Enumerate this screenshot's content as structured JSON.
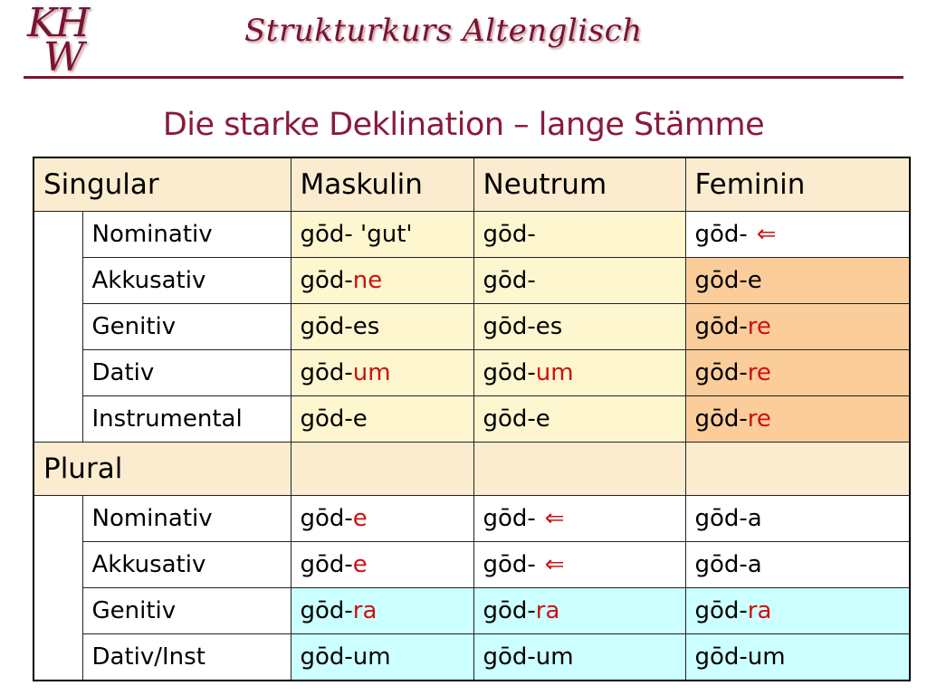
{
  "logo": {
    "line1": "KH",
    "line2": "W"
  },
  "header": {
    "title": "Strukturkurs Altenglisch"
  },
  "page_title": "Die starke Deklination – lange Stämme",
  "colors": {
    "accent": "#7a1430",
    "suffix": "#d01010",
    "header_bg": "#fbeccf",
    "cream": "#fdf6cf",
    "peach": "#fbcd9a",
    "cyan": "#ccffff"
  },
  "table": {
    "sections": [
      {
        "label": "Singular",
        "headers": [
          "Maskulin",
          "Neutrum",
          "Feminin"
        ],
        "rows": [
          {
            "case": "Nominativ",
            "cells": [
              {
                "stem": "gōd-",
                "suffix": "",
                "gloss": " 'gut'",
                "arrow": false,
                "bg": "cream"
              },
              {
                "stem": "gōd-",
                "suffix": "",
                "gloss": "",
                "arrow": false,
                "bg": "cream"
              },
              {
                "stem": "gōd-",
                "suffix": "",
                "gloss": "",
                "arrow": true,
                "bg": "white"
              }
            ]
          },
          {
            "case": "Akkusativ",
            "cells": [
              {
                "stem": "gōd-",
                "suffix": "ne",
                "gloss": "",
                "arrow": false,
                "bg": "cream"
              },
              {
                "stem": "gōd-",
                "suffix": "",
                "gloss": "",
                "arrow": false,
                "bg": "cream"
              },
              {
                "stem": "gōd-e",
                "suffix": "",
                "gloss": "",
                "arrow": false,
                "bg": "peach"
              }
            ]
          },
          {
            "case": "Genitiv",
            "cells": [
              {
                "stem": "gōd-es",
                "suffix": "",
                "gloss": "",
                "arrow": false,
                "bg": "cream"
              },
              {
                "stem": "gōd-es",
                "suffix": "",
                "gloss": "",
                "arrow": false,
                "bg": "cream"
              },
              {
                "stem": "gōd-",
                "suffix": "re",
                "gloss": "",
                "arrow": false,
                "bg": "peach"
              }
            ]
          },
          {
            "case": "Dativ",
            "cells": [
              {
                "stem": "gōd-",
                "suffix": "um",
                "gloss": "",
                "arrow": false,
                "bg": "cream"
              },
              {
                "stem": "gōd-",
                "suffix": "um",
                "gloss": "",
                "arrow": false,
                "bg": "cream"
              },
              {
                "stem": "gōd-",
                "suffix": "re",
                "gloss": "",
                "arrow": false,
                "bg": "peach"
              }
            ]
          },
          {
            "case": "Instrumental",
            "cells": [
              {
                "stem": "gōd-e",
                "suffix": "",
                "gloss": "",
                "arrow": false,
                "bg": "cream"
              },
              {
                "stem": "gōd-e",
                "suffix": "",
                "gloss": "",
                "arrow": false,
                "bg": "cream"
              },
              {
                "stem": "gōd-",
                "suffix": "re",
                "gloss": "",
                "arrow": false,
                "bg": "peach"
              }
            ]
          }
        ]
      },
      {
        "label": "Plural",
        "headers": [
          "",
          "",
          ""
        ],
        "rows": [
          {
            "case": "Nominativ",
            "cells": [
              {
                "stem": "gōd-",
                "suffix": "e",
                "gloss": "",
                "arrow": false,
                "bg": "white"
              },
              {
                "stem": "gōd-",
                "suffix": "",
                "gloss": "",
                "arrow": true,
                "bg": "white"
              },
              {
                "stem": "gōd-a",
                "suffix": "",
                "gloss": "",
                "arrow": false,
                "bg": "white"
              }
            ]
          },
          {
            "case": "Akkusativ",
            "cells": [
              {
                "stem": "gōd-",
                "suffix": "e",
                "gloss": "",
                "arrow": false,
                "bg": "white"
              },
              {
                "stem": "gōd-",
                "suffix": "",
                "gloss": "",
                "arrow": true,
                "bg": "white"
              },
              {
                "stem": "gōd-a",
                "suffix": "",
                "gloss": "",
                "arrow": false,
                "bg": "white"
              }
            ]
          },
          {
            "case": "Genitiv",
            "cells": [
              {
                "stem": "gōd-",
                "suffix": "ra",
                "gloss": "",
                "arrow": false,
                "bg": "cyan"
              },
              {
                "stem": "gōd-",
                "suffix": "ra",
                "gloss": "",
                "arrow": false,
                "bg": "cyan"
              },
              {
                "stem": "gōd-",
                "suffix": "ra",
                "gloss": "",
                "arrow": false,
                "bg": "cyan"
              }
            ]
          },
          {
            "case": "Dativ/Inst",
            "cells": [
              {
                "stem": "gōd-um",
                "suffix": "",
                "gloss": "",
                "arrow": false,
                "bg": "cyan"
              },
              {
                "stem": "gōd-um",
                "suffix": "",
                "gloss": "",
                "arrow": false,
                "bg": "cyan"
              },
              {
                "stem": "gōd-um",
                "suffix": "",
                "gloss": "",
                "arrow": false,
                "bg": "cyan"
              }
            ]
          }
        ]
      }
    ],
    "arrow_glyph": "⇐"
  }
}
